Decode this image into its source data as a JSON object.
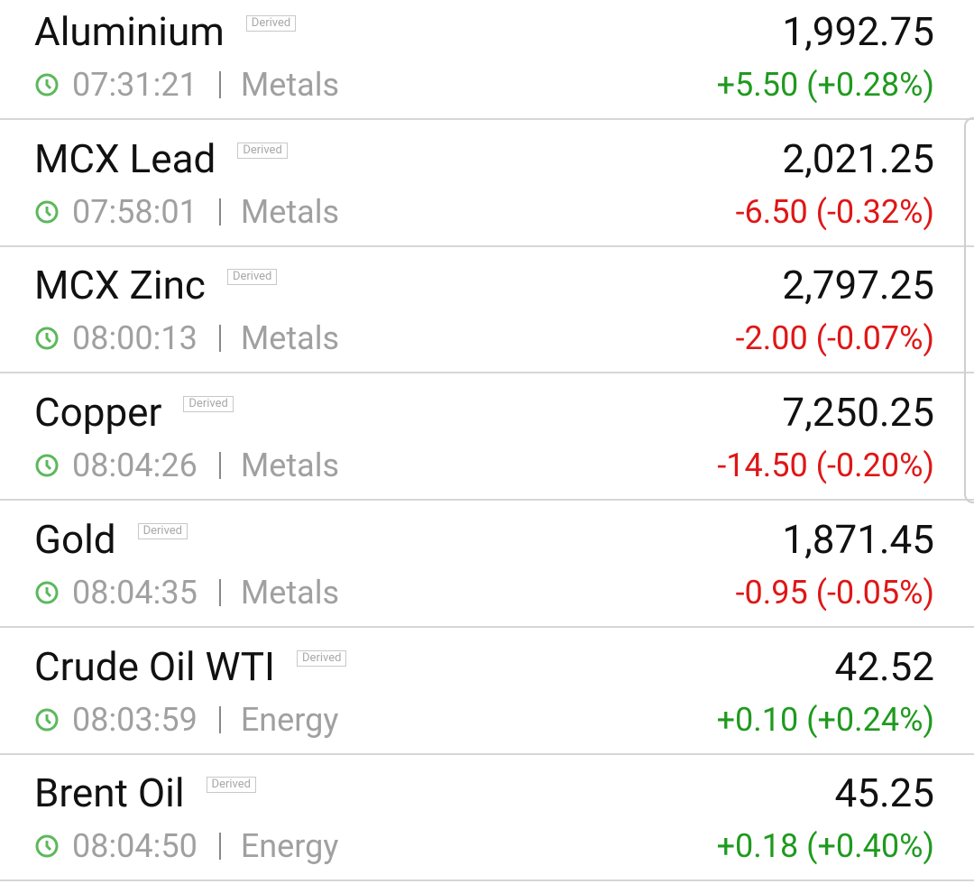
{
  "items": [
    {
      "name": "Aluminium",
      "badge": "Derived",
      "time": "07:31:21",
      "category": "Metals",
      "price": "1,992.75",
      "change": "+5.50 (+0.28%)"
    },
    {
      "name": "MCX Lead",
      "badge": "Derived",
      "time": "07:58:01",
      "category": "Metals",
      "price": "2,021.25",
      "change": "-6.50 (-0.32%)"
    },
    {
      "name": "MCX Zinc",
      "badge": "Derived",
      "time": "08:00:13",
      "category": "Metals",
      "price": "2,797.25",
      "change": "-2.00 (-0.07%)"
    },
    {
      "name": "Copper",
      "badge": "Derived",
      "time": "08:04:26",
      "category": "Metals",
      "price": "7,250.25",
      "change": "-14.50 (-0.20%)"
    },
    {
      "name": "Gold",
      "badge": "Derived",
      "time": "08:04:35",
      "category": "Metals",
      "price": "1,871.45",
      "change": "-0.95 (-0.05%)"
    },
    {
      "name": "Crude Oil WTI",
      "badge": "Derived",
      "time": "08:03:59",
      "category": "Energy",
      "price": "42.52",
      "change": "+0.10 (+0.24%)"
    },
    {
      "name": "Brent Oil",
      "badge": "Derived",
      "time": "08:04:50",
      "category": "Energy",
      "price": "45.25",
      "change": "+0.18 (+0.40%)"
    }
  ]
}
